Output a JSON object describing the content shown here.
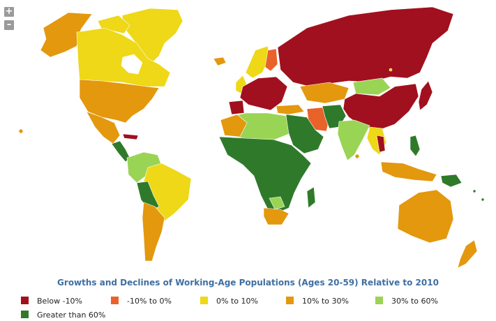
{
  "map": {
    "title": "Growths and Declines of Working-Age Populations (Ages 20-59) Relative to 2010",
    "zoom_in_label": "+",
    "zoom_out_label": "–",
    "colors": {
      "ocean": "#ffffff",
      "border": "#ffffff",
      "below_neg10": "#a1101e",
      "neg10_to_0": "#e8622a",
      "zero_to_10": "#eed817",
      "ten_to_30": "#e3980e",
      "thirty_to_60": "#9ad455",
      "above_60": "#2f7a2a"
    },
    "legend": [
      {
        "label": "Below -10%",
        "color": "#a1101e"
      },
      {
        "label": "-10% to 0%",
        "color": "#e8622a"
      },
      {
        "label": "0% to 10%",
        "color": "#eed817"
      },
      {
        "label": "10% to 30%",
        "color": "#e3980e"
      },
      {
        "label": "30% to 60%",
        "color": "#9ad455"
      },
      {
        "label": "Greater than 60%",
        "color": "#2f7a2a"
      }
    ]
  }
}
